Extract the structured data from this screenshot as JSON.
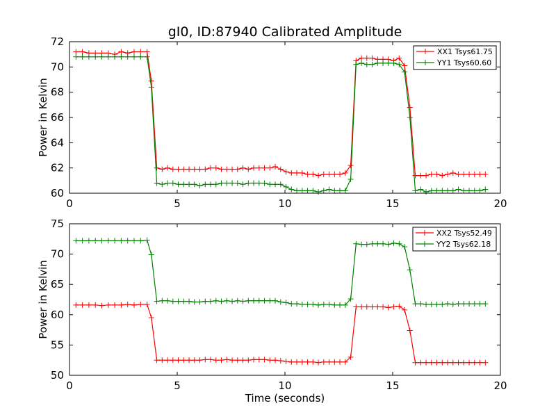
{
  "figure": {
    "title": "gI0, ID:87940 Calibrated Amplitude",
    "xlabel": "Time (seconds)"
  },
  "chart_data": [
    {
      "type": "line",
      "title": "gI0, ID:87940 Calibrated Amplitude",
      "xlabel": "",
      "ylabel": "Power in Kelvin",
      "xlim": [
        0,
        20
      ],
      "ylim": [
        60,
        72
      ],
      "xticks": [
        0,
        5,
        10,
        15,
        20
      ],
      "yticks": [
        60,
        62,
        64,
        66,
        68,
        70,
        72
      ],
      "legend_position": "top-right",
      "x": [
        0.3,
        0.6,
        0.9,
        1.2,
        1.5,
        1.8,
        2.1,
        2.4,
        2.7,
        3.0,
        3.3,
        3.6,
        3.8,
        4.05,
        4.3,
        4.55,
        4.8,
        5.05,
        5.3,
        5.55,
        5.8,
        6.05,
        6.3,
        6.55,
        6.8,
        7.05,
        7.3,
        7.55,
        7.8,
        8.05,
        8.3,
        8.55,
        8.8,
        9.05,
        9.3,
        9.55,
        9.8,
        10.05,
        10.3,
        10.55,
        10.8,
        11.05,
        11.3,
        11.55,
        11.8,
        12.05,
        12.3,
        12.55,
        12.8,
        13.05,
        13.3,
        13.55,
        13.8,
        14.05,
        14.3,
        14.55,
        14.8,
        15.05,
        15.3,
        15.55,
        15.8,
        16.05,
        16.3,
        16.55,
        16.8,
        17.05,
        17.3,
        17.55,
        17.8,
        18.05,
        18.3,
        18.55,
        18.8,
        19.05,
        19.3
      ],
      "series": [
        {
          "name": "XX1 Tsys61.75",
          "color": "#ff0000",
          "values": [
            71.2,
            71.2,
            71.1,
            71.1,
            71.1,
            71.1,
            71.0,
            71.2,
            71.1,
            71.2,
            71.2,
            71.2,
            68.9,
            62.0,
            61.9,
            62.0,
            61.9,
            61.9,
            61.9,
            61.9,
            61.9,
            61.9,
            61.9,
            62.0,
            62.0,
            61.9,
            61.9,
            61.9,
            61.9,
            62.0,
            61.9,
            62.0,
            62.0,
            62.0,
            62.0,
            62.1,
            61.9,
            61.7,
            61.6,
            61.6,
            61.6,
            61.5,
            61.5,
            61.4,
            61.5,
            61.5,
            61.5,
            61.5,
            61.6,
            62.2,
            70.5,
            70.7,
            70.7,
            70.7,
            70.6,
            70.6,
            70.6,
            70.5,
            70.7,
            70.1,
            66.8,
            61.4,
            61.4,
            61.4,
            61.5,
            61.5,
            61.4,
            61.5,
            61.6,
            61.5,
            61.5,
            61.5,
            61.5,
            61.5,
            61.5
          ]
        },
        {
          "name": "YY1 Tsys60.60",
          "color": "#008000",
          "values": [
            70.8,
            70.8,
            70.8,
            70.8,
            70.8,
            70.8,
            70.8,
            70.8,
            70.8,
            70.8,
            70.8,
            70.8,
            68.4,
            60.8,
            60.7,
            60.8,
            60.8,
            60.7,
            60.7,
            60.7,
            60.7,
            60.6,
            60.7,
            60.7,
            60.7,
            60.8,
            60.8,
            60.8,
            60.8,
            60.7,
            60.8,
            60.8,
            60.8,
            60.8,
            60.7,
            60.7,
            60.7,
            60.5,
            60.3,
            60.2,
            60.2,
            60.2,
            60.2,
            60.1,
            60.2,
            60.3,
            60.2,
            60.2,
            60.2,
            61.1,
            70.2,
            70.3,
            70.2,
            70.2,
            70.3,
            70.3,
            70.3,
            70.3,
            70.2,
            69.6,
            66.0,
            60.2,
            60.3,
            60.1,
            60.2,
            60.2,
            60.2,
            60.2,
            60.2,
            60.3,
            60.2,
            60.2,
            60.2,
            60.2,
            60.3
          ]
        }
      ]
    },
    {
      "type": "line",
      "title": "",
      "xlabel": "Time (seconds)",
      "ylabel": "Power in Kelvin",
      "xlim": [
        0,
        20
      ],
      "ylim": [
        50,
        75
      ],
      "xticks": [
        0,
        5,
        10,
        15,
        20
      ],
      "yticks": [
        50,
        55,
        60,
        65,
        70,
        75
      ],
      "legend_position": "top-right",
      "x": [
        0.3,
        0.6,
        0.9,
        1.2,
        1.5,
        1.8,
        2.1,
        2.4,
        2.7,
        3.0,
        3.3,
        3.6,
        3.8,
        4.05,
        4.3,
        4.55,
        4.8,
        5.05,
        5.3,
        5.55,
        5.8,
        6.05,
        6.3,
        6.55,
        6.8,
        7.05,
        7.3,
        7.55,
        7.8,
        8.05,
        8.3,
        8.55,
        8.8,
        9.05,
        9.3,
        9.55,
        9.8,
        10.05,
        10.3,
        10.55,
        10.8,
        11.05,
        11.3,
        11.55,
        11.8,
        12.05,
        12.3,
        12.55,
        12.8,
        13.05,
        13.3,
        13.55,
        13.8,
        14.05,
        14.3,
        14.55,
        14.8,
        15.05,
        15.3,
        15.55,
        15.8,
        16.05,
        16.3,
        16.55,
        16.8,
        17.05,
        17.3,
        17.55,
        17.8,
        18.05,
        18.3,
        18.55,
        18.8,
        19.05,
        19.3
      ],
      "series": [
        {
          "name": "XX2 Tsys52.49",
          "color": "#ff0000",
          "values": [
            61.6,
            61.6,
            61.6,
            61.6,
            61.5,
            61.6,
            61.6,
            61.6,
            61.7,
            61.6,
            61.7,
            61.7,
            59.5,
            52.5,
            52.5,
            52.5,
            52.5,
            52.5,
            52.5,
            52.5,
            52.5,
            52.5,
            52.6,
            52.6,
            52.5,
            52.5,
            52.6,
            52.5,
            52.5,
            52.5,
            52.5,
            52.6,
            52.6,
            52.6,
            52.5,
            52.5,
            52.4,
            52.3,
            52.2,
            52.2,
            52.2,
            52.2,
            52.2,
            52.1,
            52.2,
            52.2,
            52.2,
            52.2,
            52.2,
            53.0,
            61.3,
            61.3,
            61.3,
            61.3,
            61.3,
            61.3,
            61.2,
            61.3,
            61.4,
            60.8,
            57.4,
            52.1,
            52.1,
            52.1,
            52.1,
            52.1,
            52.1,
            52.1,
            52.1,
            52.1,
            52.1,
            52.1,
            52.1,
            52.1,
            52.1
          ]
        },
        {
          "name": "YY2 Tsys62.18",
          "color": "#008000",
          "values": [
            72.2,
            72.2,
            72.2,
            72.2,
            72.2,
            72.2,
            72.2,
            72.2,
            72.2,
            72.2,
            72.2,
            72.3,
            69.9,
            62.2,
            62.3,
            62.3,
            62.2,
            62.2,
            62.2,
            62.2,
            62.1,
            62.1,
            62.2,
            62.2,
            62.3,
            62.2,
            62.3,
            62.2,
            62.3,
            62.2,
            62.3,
            62.3,
            62.3,
            62.3,
            62.3,
            62.3,
            62.1,
            62.0,
            61.8,
            61.8,
            61.7,
            61.7,
            61.7,
            61.6,
            61.7,
            61.7,
            61.6,
            61.6,
            61.6,
            62.6,
            71.7,
            71.6,
            71.6,
            71.7,
            71.7,
            71.7,
            71.6,
            71.8,
            71.7,
            71.2,
            67.4,
            61.8,
            61.8,
            61.7,
            61.7,
            61.7,
            61.7,
            61.8,
            61.7,
            61.8,
            61.8,
            61.8,
            61.8,
            61.8,
            61.8
          ]
        }
      ]
    }
  ]
}
